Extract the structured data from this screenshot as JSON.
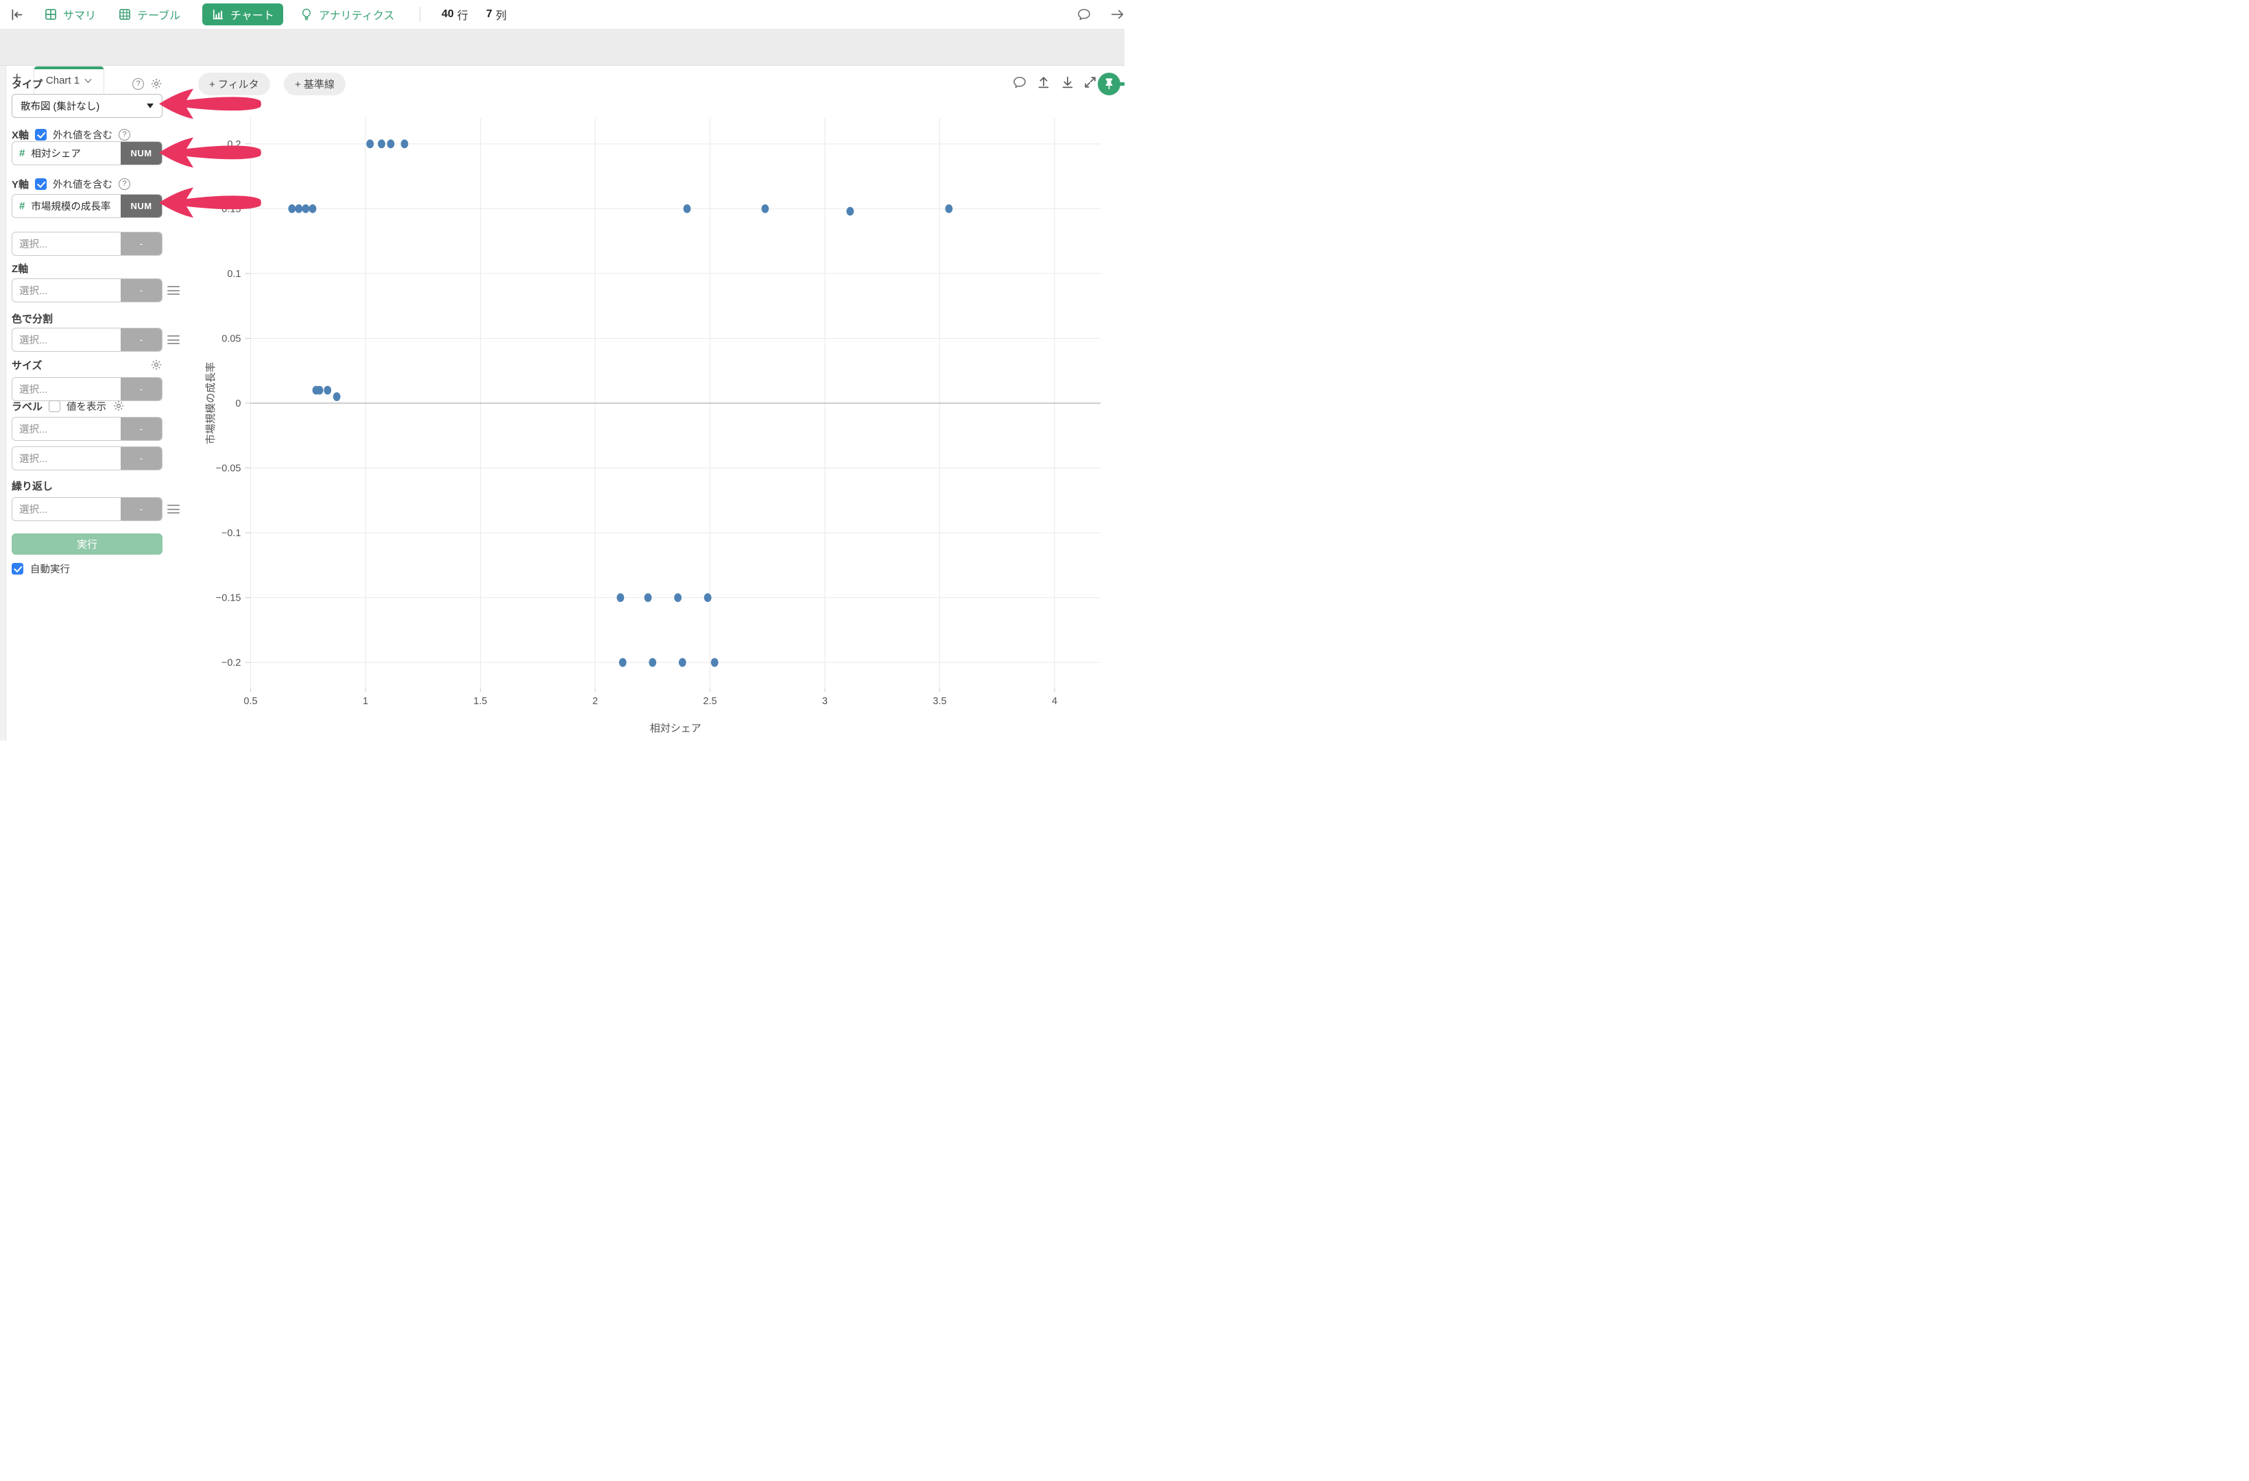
{
  "toolbar": {
    "summary_label": "サマリ",
    "table_label": "テーブル",
    "chart_label": "チャート",
    "analytics_label": "アナリティクス",
    "rows_value": "40",
    "rows_unit": "行",
    "cols_value": "7",
    "cols_unit": "列"
  },
  "tabs": {
    "add_label": "+",
    "chart_tab_label": "Chart 1"
  },
  "panel": {
    "type_label": "タイプ",
    "type_value": "散布図 (集計なし)",
    "x_label": "X軸",
    "y_label": "Y軸",
    "outlier_label": "外れ値を含む",
    "x_field": "相対シェア",
    "y_field": "市場規模の成長率",
    "num_badge": "NUM",
    "hash": "#",
    "select_placeholder": "選択...",
    "empty_badge": "-",
    "z_label": "Z軸",
    "color_label": "色で分割",
    "size_label": "サイズ",
    "label_label": "ラベル",
    "show_value_label": "値を表示",
    "repeat_label": "繰り返し",
    "run_label": "実行",
    "autorun_label": "自動実行",
    "help_glyph": "?"
  },
  "chart_toolbar": {
    "filter_button": "+ フィルタ",
    "baseline_button": "+ 基準線"
  },
  "colors": {
    "accent_green": "#36a471",
    "toolbar_green": "#3aa273",
    "checkbox_blue": "#2e7ef6",
    "arrow_pink": "#e9345f",
    "num_badge_bg": "#6d6d6d",
    "empty_badge_bg": "#ababab",
    "run_button_bg": "#90c9a9",
    "point_blue": "#4e82b4"
  },
  "chart_data": {
    "type": "scatter",
    "title": "",
    "xlabel": "相対シェア",
    "ylabel": "市場規模の成長率",
    "xlim": [
      0.5,
      4.2
    ],
    "ylim": [
      -0.22,
      0.22
    ],
    "x_ticks": [
      0.5,
      1,
      1.5,
      2,
      2.5,
      3,
      3.5,
      4
    ],
    "x_tick_labels": [
      "0.5",
      "1",
      "1.5",
      "2",
      "2.5",
      "3",
      "3.5",
      "4"
    ],
    "y_ticks": [
      0.2,
      0.15,
      0.1,
      0.05,
      0,
      -0.05,
      -0.1,
      -0.15,
      -0.2
    ],
    "y_tick_labels": [
      "0.2",
      "0.15",
      "0.1",
      "0.05",
      "0",
      "−0.05",
      "−0.1",
      "−0.15",
      "−0.2"
    ],
    "grid": true,
    "legend": "none",
    "point_color": "#4e82b4",
    "points": [
      {
        "x": 1.02,
        "y": 0.2
      },
      {
        "x": 1.07,
        "y": 0.2
      },
      {
        "x": 1.11,
        "y": 0.2
      },
      {
        "x": 1.17,
        "y": 0.2
      },
      {
        "x": 0.68,
        "y": 0.15
      },
      {
        "x": 0.71,
        "y": 0.15
      },
      {
        "x": 0.74,
        "y": 0.15
      },
      {
        "x": 0.77,
        "y": 0.15
      },
      {
        "x": 2.4,
        "y": 0.15
      },
      {
        "x": 2.74,
        "y": 0.15
      },
      {
        "x": 3.11,
        "y": 0.148
      },
      {
        "x": 3.54,
        "y": 0.15
      },
      {
        "x": 0.785,
        "y": 0.01
      },
      {
        "x": 0.8,
        "y": 0.01
      },
      {
        "x": 0.835,
        "y": 0.01
      },
      {
        "x": 0.875,
        "y": 0.005
      },
      {
        "x": 2.11,
        "y": -0.15
      },
      {
        "x": 2.23,
        "y": -0.15
      },
      {
        "x": 2.36,
        "y": -0.15
      },
      {
        "x": 2.49,
        "y": -0.15
      },
      {
        "x": 2.12,
        "y": -0.2
      },
      {
        "x": 2.25,
        "y": -0.2
      },
      {
        "x": 2.38,
        "y": -0.2
      },
      {
        "x": 2.52,
        "y": -0.2
      }
    ]
  }
}
